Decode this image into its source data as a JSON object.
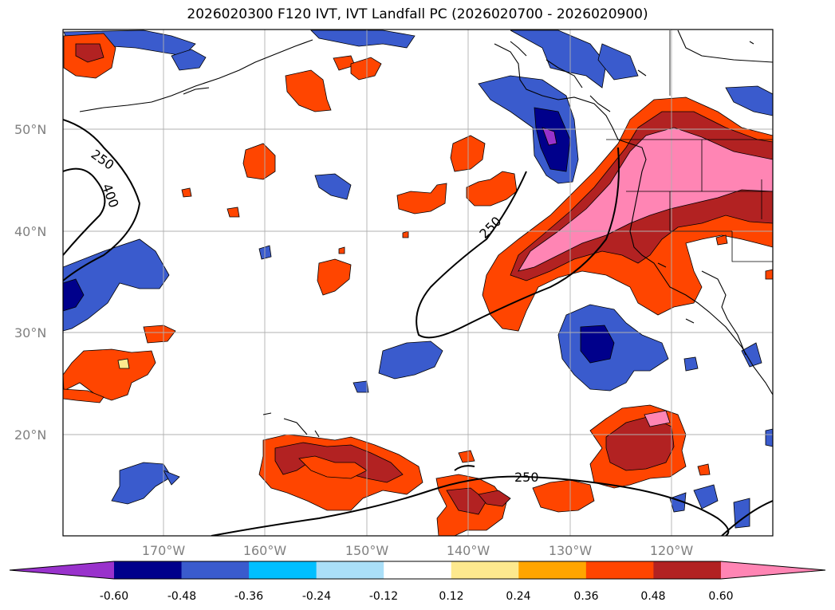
{
  "title": "2026020300 F120 IVT, IVT Landfall PC (2026020700 - 2026020900)",
  "latitude_labels": [
    "50°N",
    "40°N",
    "30°N",
    "20°N"
  ],
  "longitude_labels": [
    "170°W",
    "160°W",
    "150°W",
    "140°W",
    "130°W",
    "120°W"
  ],
  "contour_labels": [
    "250",
    "400",
    "250",
    "250"
  ],
  "colorbar": {
    "ticks": [
      "-0.60",
      "-0.48",
      "-0.36",
      "-0.24",
      "-0.12",
      "0.12",
      "0.24",
      "0.36",
      "0.48",
      "0.60"
    ],
    "colors": [
      "#9932cc",
      "#00008b",
      "#3a5bcd",
      "#00bfff",
      "#aadff8",
      "#ffffff",
      "#fde98e",
      "#ffa500",
      "#ff4500",
      "#b22222",
      "#ff85b4"
    ]
  },
  "colors": {
    "coast": "#000000",
    "grid": "#b0b0b0",
    "tick_label": "#808080"
  }
}
